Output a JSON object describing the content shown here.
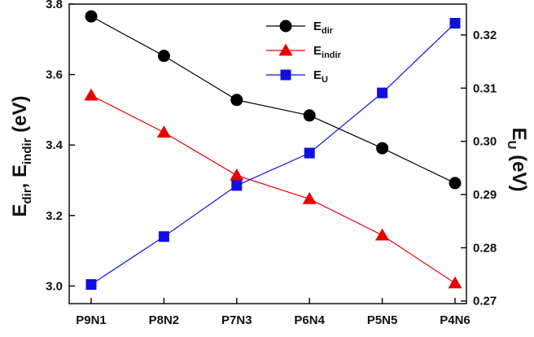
{
  "chart_data": {
    "type": "line",
    "categories": [
      "P9N1",
      "P8N2",
      "P7N3",
      "P6N4",
      "P5N5",
      "P4N6"
    ],
    "left_axis": {
      "label_parts": [
        "E",
        "dir",
        ", E",
        "indir",
        " (eV)"
      ],
      "ylim": [
        2.95,
        3.8
      ],
      "ticks": [
        "3.0",
        "3.2",
        "3.4",
        "3.6",
        "3.8"
      ],
      "tick_values": [
        3.0,
        3.2,
        3.4,
        3.6,
        3.8
      ]
    },
    "right_axis": {
      "label_parts": [
        "E",
        "U",
        " (eV)"
      ],
      "ylim": [
        0.2695,
        0.3258
      ],
      "ticks": [
        "0.27",
        "0.28",
        "0.29",
        "0.30",
        "0.31",
        "0.32"
      ],
      "tick_values": [
        0.27,
        0.28,
        0.29,
        0.3,
        0.31,
        0.32
      ]
    },
    "series": [
      {
        "key": "edir",
        "name": "E",
        "sub": "dir",
        "axis": "left",
        "marker": "circle",
        "color": "#000000",
        "values": [
          3.765,
          3.653,
          3.528,
          3.484,
          3.391,
          3.292
        ]
      },
      {
        "key": "eindir",
        "name": "E",
        "sub": "indir",
        "axis": "left",
        "marker": "triangle",
        "color": "#e60000",
        "values": [
          3.541,
          3.436,
          3.314,
          3.247,
          3.144,
          3.008
        ]
      },
      {
        "key": "eu",
        "name": "E",
        "sub": "U",
        "axis": "right",
        "marker": "square",
        "color": "#1010e0",
        "values": [
          0.2731,
          0.2821,
          0.2917,
          0.2978,
          0.3091,
          0.3222
        ]
      }
    ],
    "legend_position": "top-center",
    "grid": false
  }
}
